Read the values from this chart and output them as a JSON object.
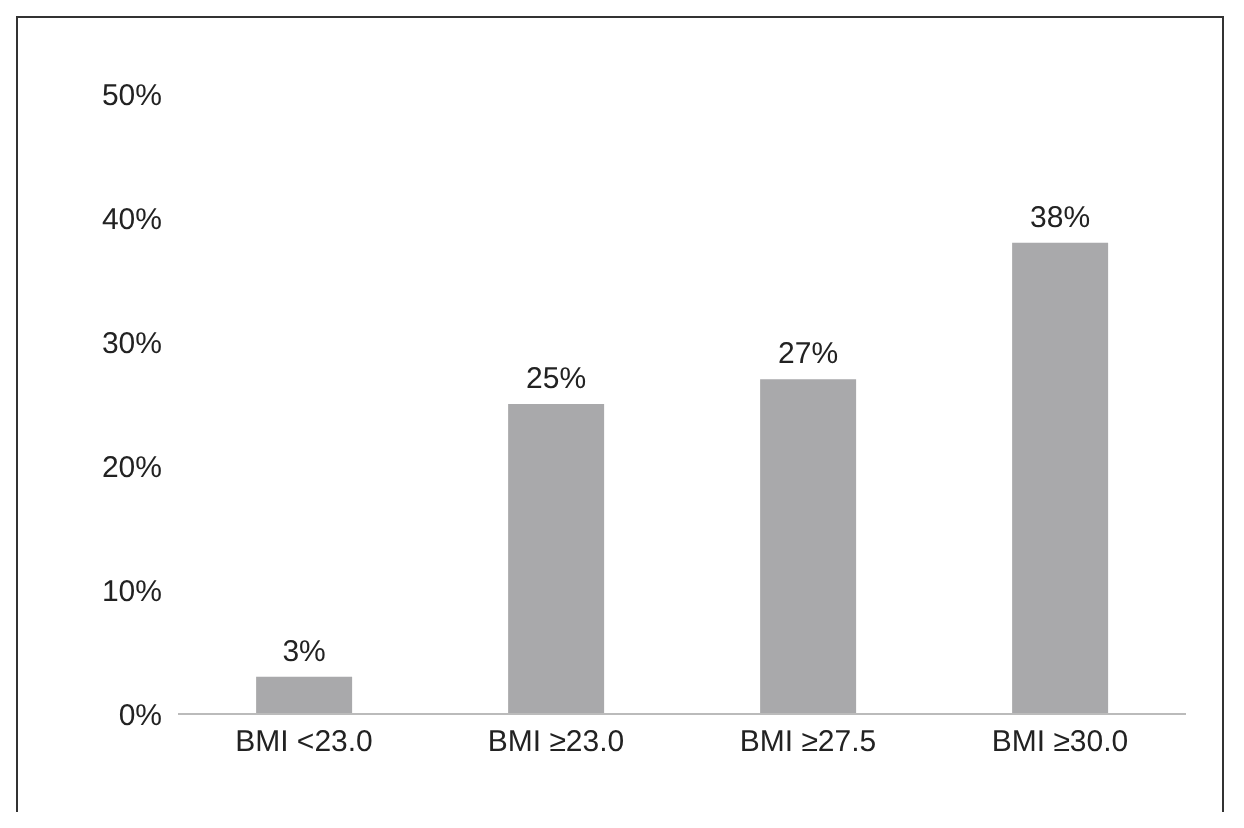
{
  "chart_data": {
    "type": "bar",
    "categories": [
      "BMI <23.0",
      "BMI ≥23.0",
      "BMI ≥27.5",
      "BMI ≥30.0"
    ],
    "values": [
      3,
      25,
      27,
      38
    ],
    "color": "#a9a9ab",
    "value_labels": [
      "3%",
      "25%",
      "27%",
      "38%"
    ],
    "ylim": [
      0,
      50
    ],
    "yticks": [
      {
        "value": 0,
        "label": "0%"
      },
      {
        "value": 10,
        "label": "10%"
      },
      {
        "value": 20,
        "label": "20%"
      },
      {
        "value": 30,
        "label": "30%"
      },
      {
        "value": 40,
        "label": "40%"
      },
      {
        "value": 50,
        "label": "50%"
      }
    ],
    "grid": false,
    "legend": false
  }
}
